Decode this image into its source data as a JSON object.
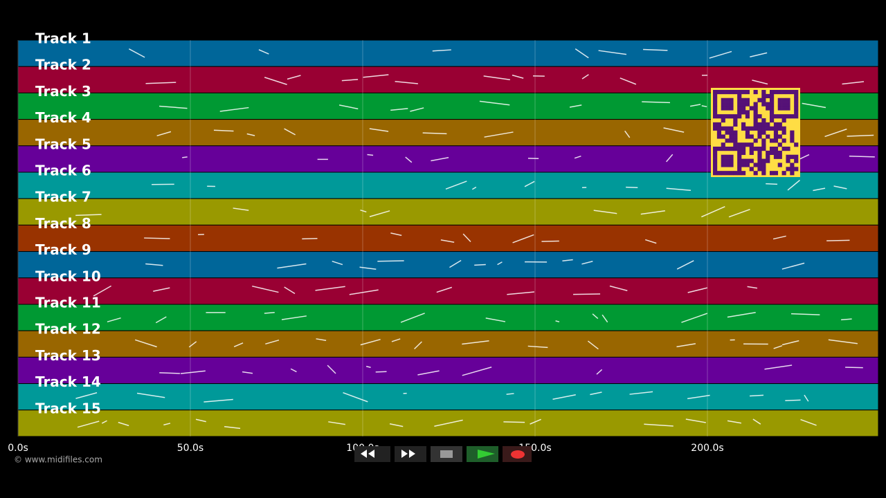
{
  "tracks": [
    {
      "label": "Track 1",
      "color": "#006699"
    },
    {
      "label": "Track 2",
      "color": "#990033"
    },
    {
      "label": "Track 3",
      "color": "#009933"
    },
    {
      "label": "Track 4",
      "color": "#996600"
    },
    {
      "label": "Track 5",
      "color": "#660099"
    },
    {
      "label": "Track 6",
      "color": "#009999"
    },
    {
      "label": "Track 7",
      "color": "#999900"
    },
    {
      "label": "Track 8",
      "color": "#993300"
    },
    {
      "label": "Track 9",
      "color": "#006699"
    },
    {
      "label": "Track 10",
      "color": "#990033"
    },
    {
      "label": "Track 11",
      "color": "#009933"
    },
    {
      "label": "Track 12",
      "color": "#996600"
    },
    {
      "label": "Track 13",
      "color": "#660099"
    },
    {
      "label": "Track 14",
      "color": "#009999"
    },
    {
      "label": "Track 15",
      "color": "#999900"
    }
  ],
  "time_axis": {
    "xlim": [
      0,
      249.6
    ],
    "ticks": [
      {
        "value": 0,
        "label": "0.0s"
      },
      {
        "value": 50,
        "label": "50.0s"
      },
      {
        "value": 100,
        "label": "100.0s"
      },
      {
        "value": 150,
        "label": "150.0s"
      },
      {
        "value": 200,
        "label": "200.0s"
      }
    ]
  },
  "footer": {
    "copyright": "© www.midifiles.com"
  }
}
